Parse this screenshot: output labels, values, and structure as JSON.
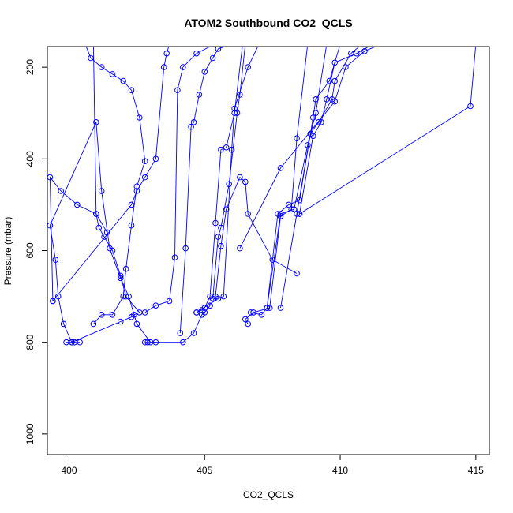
{
  "chart_data": {
    "type": "line",
    "title": "ATOM2 Southbound CO2_QCLS",
    "xlabel": "CO2_QCLS",
    "ylabel": "Pressure (mbar)",
    "xlim": [
      399.2,
      415.5
    ],
    "ylim": [
      1045,
      155
    ],
    "y_reversed": true,
    "grid": false,
    "legend": "none",
    "marker": "open-circle",
    "color": "#0000ff",
    "x_ticks": [
      {
        "value": 400,
        "label": "400"
      },
      {
        "value": 405,
        "label": "405"
      },
      {
        "value": 410,
        "label": "410"
      },
      {
        "value": 415,
        "label": "415"
      }
    ],
    "y_ticks": [
      {
        "value": 200,
        "label": "200"
      },
      {
        "value": 400,
        "label": "400"
      },
      {
        "value": 600,
        "label": "600"
      },
      {
        "value": 800,
        "label": "800"
      },
      {
        "value": 1000,
        "label": "1000"
      }
    ],
    "series": [
      {
        "x": [
          400.9,
          401.2,
          401.6,
          402.0,
          402.1,
          402.3,
          402.5,
          402.8,
          402.6,
          402.3,
          402.0,
          401.6,
          401.2,
          400.8,
          400.6
        ],
        "y": [
          760,
          740,
          740,
          700,
          640,
          545,
          460,
          405,
          310,
          250,
          230,
          215,
          200,
          180,
          150
        ]
      },
      {
        "x": [
          399.9,
          400.2,
          400.4,
          400.1,
          399.8,
          399.6,
          399.5,
          399.3,
          401.0,
          401.2,
          401.5,
          401.9,
          402.2,
          402.5,
          403.0,
          403.2
        ],
        "y": [
          800,
          800,
          800,
          800,
          760,
          700,
          620,
          545,
          320,
          470,
          595,
          660,
          700,
          760,
          800,
          800
        ]
      },
      {
        "x": [
          400.1,
          401.9,
          402.3,
          402.4,
          402.6,
          402.1,
          401.9,
          401.6,
          401.3,
          401.1,
          401.0,
          400.9
        ],
        "y": [
          800,
          755,
          745,
          740,
          735,
          700,
          655,
          600,
          570,
          550,
          520,
          150
        ]
      },
      {
        "x": [
          399.4,
          399.3,
          399.7,
          400.3,
          401.0,
          401.4
        ],
        "y": [
          710,
          440,
          470,
          500,
          520,
          560
        ]
      },
      {
        "x": [
          399.4,
          402.3,
          402.5,
          402.8,
          403.2,
          403.5,
          403.6,
          403.7
        ],
        "y": [
          710,
          500,
          470,
          440,
          400,
          200,
          170,
          150
        ]
      },
      {
        "x": [
          402.8,
          402.9,
          404.2,
          404.6,
          404.9,
          405.0,
          405.2,
          405.4,
          405.6,
          405.8,
          406.3,
          406.5,
          406.6,
          407.5,
          408.4
        ],
        "y": [
          800,
          800,
          800,
          780,
          740,
          735,
          720,
          700,
          590,
          510,
          440,
          450,
          520,
          620,
          650
        ]
      },
      {
        "x": [
          402.8,
          403.2,
          403.7,
          403.9,
          404.0,
          404.2,
          404.7,
          405.2,
          405.5,
          405.6
        ],
        "y": [
          735,
          720,
          710,
          615,
          250,
          200,
          170,
          155,
          150,
          150
        ]
      },
      {
        "x": [
          404.1,
          404.3,
          404.5,
          404.6,
          404.8,
          405.0,
          405.3,
          405.5,
          406.0
        ],
        "y": [
          780,
          595,
          330,
          320,
          260,
          210,
          180,
          160,
          150
        ]
      },
      {
        "x": [
          404.7,
          404.9,
          405.0,
          405.2,
          405.4,
          405.6,
          405.8,
          406.1,
          406.4
        ],
        "y": [
          735,
          730,
          725,
          700,
          540,
          380,
          375,
          300,
          150
        ]
      },
      {
        "x": [
          405.3,
          405.5,
          405.6,
          405.9,
          406.2,
          406.3,
          406.5
        ],
        "y": [
          705,
          570,
          550,
          455,
          300,
          260,
          150
        ]
      },
      {
        "x": [
          404.7,
          405.5,
          405.7,
          406.0,
          406.1,
          406.6,
          407.0
        ],
        "y": [
          735,
          705,
          700,
          380,
          290,
          200,
          150
        ]
      },
      {
        "x": [
          406.6,
          406.5,
          406.8,
          407.4,
          407.8,
          408.2,
          408.4,
          408.8
        ],
        "y": [
          760,
          750,
          735,
          725,
          525,
          510,
          355,
          150
        ]
      },
      {
        "x": [
          406.7,
          407.1,
          407.3,
          407.8,
          408.3,
          408.8,
          409.1,
          409.5
        ],
        "y": [
          735,
          740,
          725,
          520,
          510,
          370,
          300,
          150
        ]
      },
      {
        "x": [
          407.3,
          407.7,
          408.1,
          408.5,
          409.0,
          409.1,
          409.6,
          410.0
        ],
        "y": [
          725,
          520,
          500,
          490,
          310,
          270,
          230,
          150
        ]
      },
      {
        "x": [
          407.8,
          408.4,
          408.9,
          409.2,
          409.7,
          409.8,
          410.4,
          410.8
        ],
        "y": [
          725,
          520,
          345,
          320,
          270,
          230,
          170,
          150
        ]
      },
      {
        "x": [
          408.5,
          409.0,
          409.3,
          409.5,
          409.8,
          410.6,
          411.2
        ],
        "y": [
          520,
          350,
          320,
          270,
          190,
          170,
          150
        ]
      },
      {
        "x": [
          408.5,
          414.8,
          415.0
        ],
        "y": [
          520,
          285,
          150
        ]
      },
      {
        "x": [
          406.3,
          407.8,
          409.8,
          410.2,
          410.9,
          411.5
        ],
        "y": [
          595,
          420,
          275,
          200,
          165,
          150
        ]
      }
    ]
  }
}
